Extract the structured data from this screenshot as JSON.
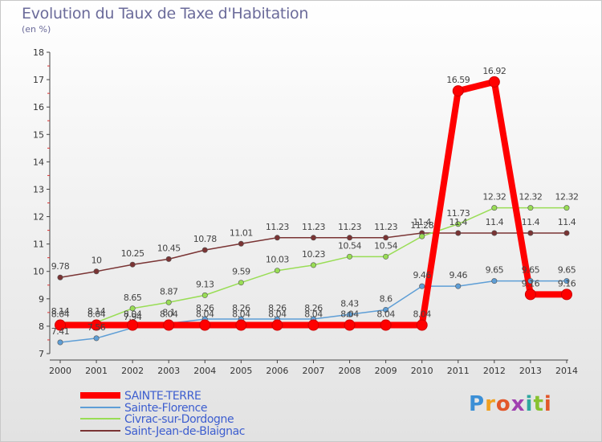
{
  "header": {
    "title": "Evolution du Taux de Taxe d'Habitation",
    "unit": "(en %)"
  },
  "chart_data": {
    "type": "line",
    "x": [
      "2000",
      "2001",
      "2002",
      "2003",
      "2004",
      "2005",
      "2006",
      "2007",
      "2008",
      "2009",
      "2010",
      "2011",
      "2012",
      "2013",
      "2014"
    ],
    "yticks": [
      "7",
      "8",
      "9",
      "10",
      "11",
      "12",
      "13",
      "14",
      "15",
      "16",
      "17",
      "18"
    ],
    "ylim": [
      7,
      18
    ],
    "grid": false,
    "legend_position": "bottom-left",
    "series": [
      {
        "name": "SAINTE-TERRE",
        "color": "#ff0000",
        "values": [
          8.04,
          8.04,
          8.04,
          8.04,
          8.04,
          8.04,
          8.04,
          8.04,
          8.04,
          8.04,
          8.04,
          16.59,
          16.92,
          9.16,
          9.16
        ],
        "labels": [
          "8.04",
          "8.04",
          "8.04",
          "8.04",
          "8.04",
          "8.04",
          "8.04",
          "8.04",
          "8.04",
          "8.04",
          "8.04",
          "16.59",
          "16.92",
          "9.16",
          "9.16"
        ]
      },
      {
        "name": "Sainte-Florence",
        "color": "#5e9ed6",
        "values": [
          7.41,
          7.56,
          7.94,
          8.1,
          8.26,
          8.26,
          8.26,
          8.26,
          8.43,
          8.6,
          9.46,
          9.46,
          9.65,
          9.65,
          9.65
        ],
        "labels": [
          "7.41",
          "7.56",
          "7.94",
          "8.1",
          "8.26",
          "8.26",
          "8.26",
          "8.26",
          "8.43",
          "8.6",
          "9.46",
          "9.46",
          "9.65",
          "9.65",
          "9.65"
        ]
      },
      {
        "name": "Civrac-sur-Dordogne",
        "color": "#99dd55",
        "values": [
          8.14,
          8.14,
          8.65,
          8.87,
          9.13,
          9.59,
          10.03,
          10.23,
          10.54,
          10.54,
          11.28,
          11.73,
          12.32,
          12.32,
          12.32
        ],
        "labels": [
          "8.14",
          "8.14",
          "8.65",
          "8.87",
          "9.13",
          "9.59",
          "10.03",
          "10.23",
          "10.54",
          "10.54",
          "11.28",
          "11.73",
          "12.32",
          "12.32",
          "12.32"
        ]
      },
      {
        "name": "Saint-Jean-de-Blaignac",
        "color": "#7a3434",
        "values": [
          9.78,
          10,
          10.25,
          10.45,
          10.78,
          11.01,
          11.23,
          11.23,
          11.23,
          11.23,
          11.4,
          11.4,
          11.4,
          11.4,
          11.4
        ],
        "labels": [
          "9.78",
          "10",
          "10.25",
          "10.45",
          "10.78",
          "11.01",
          "11.23",
          "11.23",
          "11.23",
          "11.23",
          "11.4",
          "11.4",
          "11.4",
          "11.4",
          "11.4"
        ]
      }
    ]
  },
  "logo": {
    "letters": [
      {
        "ch": "P",
        "color": "#3b8fd6"
      },
      {
        "ch": "r",
        "color": "#f0a020"
      },
      {
        "ch": "o",
        "color": "#e2572a"
      },
      {
        "ch": "x",
        "color": "#a040b0"
      },
      {
        "ch": "i",
        "color": "#2fa8a0"
      },
      {
        "ch": "t",
        "color": "#88c230"
      },
      {
        "ch": "i",
        "color": "#e2572a"
      }
    ]
  }
}
